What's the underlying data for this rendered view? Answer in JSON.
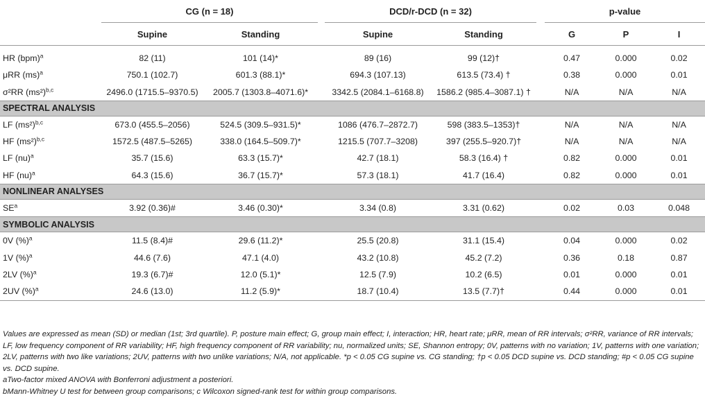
{
  "table": {
    "groups": {
      "cg": "CG (n = 18)",
      "dcd": "DCD/r-DCD (n = 32)",
      "pvalue": "p-value"
    },
    "subheaders": [
      "Supine",
      "Standing",
      "Supine",
      "Standing",
      "G",
      "P",
      "I"
    ],
    "top_rows": [
      {
        "label": "HR (bpm)",
        "sup": "a",
        "cells": [
          "82 (11)",
          "101 (14)*",
          "89 (16)",
          "99 (12)†",
          "0.47",
          "0.000",
          "0.02"
        ]
      },
      {
        "label": "μRR (ms)",
        "sup": "a",
        "cells": [
          "750.1 (102.7)",
          "601.3 (88.1)*",
          "694.3 (107.13)",
          "613.5 (73.4) †",
          "0.38",
          "0.000",
          "0.01"
        ]
      },
      {
        "label": "σ²RR (ms²)",
        "sup": "b,c",
        "cells": [
          "2496.0 (1715.5–9370.5)",
          "2005.7 (1303.8–4071.6)*",
          "3342.5 (2084.1–6168.8)",
          "1586.2 (985.4–3087.1) †",
          "N/A",
          "N/A",
          "N/A"
        ]
      }
    ],
    "sections": [
      {
        "title": "SPECTRAL ANALYSIS",
        "rows": [
          {
            "label": "LF (ms²)",
            "sup": "b,c",
            "cells": [
              "673.0 (455.5–2056)",
              "524.5 (309.5–931.5)*",
              "1086 (476.7–2872.7)",
              "598 (383.5–1353)†",
              "N/A",
              "N/A",
              "N/A"
            ]
          },
          {
            "label": "HF (ms²)",
            "sup": "b,c",
            "cells": [
              "1572.5 (487.5–5265)",
              "338.0 (164.5–509.7)*",
              "1215.5 (707.7–3208)",
              "397 (255.5–920.7)†",
              "N/A",
              "N/A",
              "N/A"
            ]
          },
          {
            "label": "LF (nu)",
            "sup": "a",
            "cells": [
              "35.7 (15.6)",
              "63.3 (15.7)*",
              "42.7 (18.1)",
              "58.3 (16.4) †",
              "0.82",
              "0.000",
              "0.01"
            ]
          },
          {
            "label": "HF (nu)",
            "sup": "a",
            "cells": [
              "64.3 (15.6)",
              "36.7 (15.7)*",
              "57.3 (18.1)",
              "41.7 (16.4)",
              "0.82",
              "0.000",
              "0.01"
            ]
          }
        ]
      },
      {
        "title": "NONLINEAR ANALYSES",
        "rows": [
          {
            "label": "SE",
            "sup": "a",
            "cells": [
              "3.92 (0.36)#",
              "3.46 (0.30)*",
              "3.34 (0.8)",
              "3.31 (0.62)",
              "0.02",
              "0.03",
              "0.048"
            ]
          }
        ]
      },
      {
        "title": "SYMBOLIC ANALYSIS",
        "rows": [
          {
            "label": "0V (%)",
            "sup": "a",
            "cells": [
              "11.5 (8.4)#",
              "29.6 (11.2)*",
              "25.5 (20.8)",
              "31.1 (15.4)",
              "0.04",
              "0.000",
              "0.02"
            ]
          },
          {
            "label": "1V (%)",
            "sup": "a",
            "cells": [
              "44.6 (7.6)",
              "47.1 (4.0)",
              "43.2 (10.8)",
              "45.2 (7.2)",
              "0.36",
              "0.18",
              "0.87"
            ]
          },
          {
            "label": "2LV (%)",
            "sup": "a",
            "cells": [
              "19.3 (6.7)#",
              "12.0 (5.1)*",
              "12.5 (7.9)",
              "10.2 (6.5)",
              "0.01",
              "0.000",
              "0.01"
            ]
          },
          {
            "label": "2UV (%)",
            "sup": "a",
            "cells": [
              "24.6 (13.0)",
              "11.2 (5.9)*",
              "18.7 (10.4)",
              "13.5 (7.7)†",
              "0.44",
              "0.000",
              "0.01"
            ]
          }
        ]
      }
    ]
  },
  "notes": {
    "main": "Values are expressed as mean (SD) or median (1st; 3rd quartile). P, posture main effect; G, group main effect; I, interaction; HR, heart rate; μRR, mean of RR intervals; σ²RR, variance of RR intervals; LF, low frequency component of RR variability; HF, high frequency component of RR variability; nu, normalized units; SE, Shannon entropy; 0V, patterns with no variation; 1V, patterns with one variation; 2LV, patterns with two like variations; 2UV, patterns with two unlike variations; N/A, not applicable. *p < 0.05 CG supine vs. CG standing; †p < 0.05 DCD supine vs. DCD standing; #p < 0.05 CG supine vs. DCD supine.",
    "a": "aTwo-factor mixed ANOVA with Bonferroni adjustment a posteriori.",
    "b": "bMann-Whitney U test for between group comparisons; c Wilcoxon signed-rank test for within group comparisons."
  }
}
